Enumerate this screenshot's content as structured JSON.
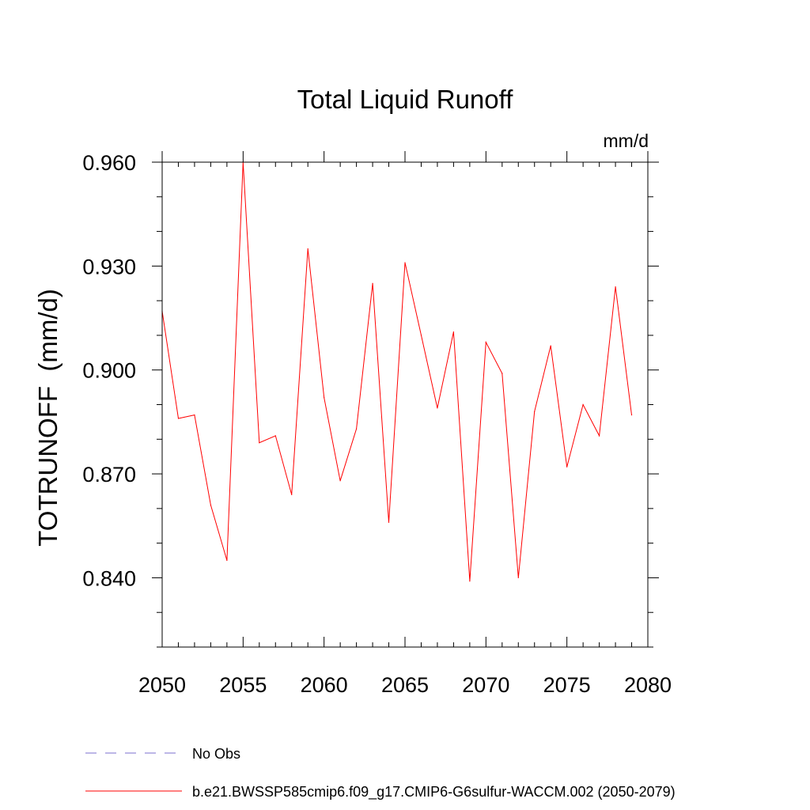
{
  "chart_data": {
    "type": "line",
    "title": "Total Liquid Runoff",
    "units_label": "mm/d",
    "ylabel": "TOTRUNOFF  (mm/d)",
    "xlabel": "",
    "xlim": [
      2050,
      2080
    ],
    "ylim": [
      0.82,
      0.96
    ],
    "x_ticks": [
      2050,
      2055,
      2060,
      2065,
      2070,
      2075,
      2080
    ],
    "x_tick_labels": [
      "2050",
      "2055",
      "2060",
      "2065",
      "2070",
      "2075",
      "2080"
    ],
    "x_minor_ticks": [
      2051,
      2052,
      2053,
      2054,
      2056,
      2057,
      2058,
      2059,
      2061,
      2062,
      2063,
      2064,
      2066,
      2067,
      2068,
      2069,
      2071,
      2072,
      2073,
      2074,
      2076,
      2077,
      2078,
      2079
    ],
    "y_ticks": [
      0.84,
      0.87,
      0.9,
      0.93,
      0.96
    ],
    "y_tick_labels": [
      "0.840",
      "0.870",
      "0.900",
      "0.930",
      "0.960"
    ],
    "y_minor_ticks": [
      0.82,
      0.83,
      0.85,
      0.86,
      0.88,
      0.89,
      0.91,
      0.92,
      0.94,
      0.95
    ],
    "grid": false,
    "series": [
      {
        "name": "b.e21.BWSSP585cmip6.f09_g17.CMIP6-G6sulfur-WACCM.002 (2050-2079)",
        "color": "#ff0000",
        "x": [
          2050,
          2051,
          2052,
          2053,
          2054,
          2055,
          2056,
          2057,
          2058,
          2059,
          2060,
          2061,
          2062,
          2063,
          2064,
          2065,
          2066,
          2067,
          2068,
          2069,
          2070,
          2071,
          2072,
          2073,
          2074,
          2075,
          2076,
          2077,
          2078,
          2079
        ],
        "y": [
          0.917,
          0.886,
          0.887,
          0.861,
          0.845,
          0.96,
          0.879,
          0.881,
          0.864,
          0.935,
          0.892,
          0.868,
          0.883,
          0.925,
          0.856,
          0.931,
          0.91,
          0.889,
          0.911,
          0.839,
          0.908,
          0.899,
          0.84,
          0.888,
          0.907,
          0.872,
          0.89,
          0.881,
          0.924,
          0.887
        ]
      }
    ],
    "legend": [
      {
        "label": "No Obs",
        "style": "dashed",
        "color": "#7b6fcf"
      },
      {
        "label": "b.e21.BWSSP585cmip6.f09_g17.CMIP6-G6sulfur-WACCM.002 (2050-2079)",
        "style": "solid",
        "color": "#ff0000"
      }
    ]
  }
}
